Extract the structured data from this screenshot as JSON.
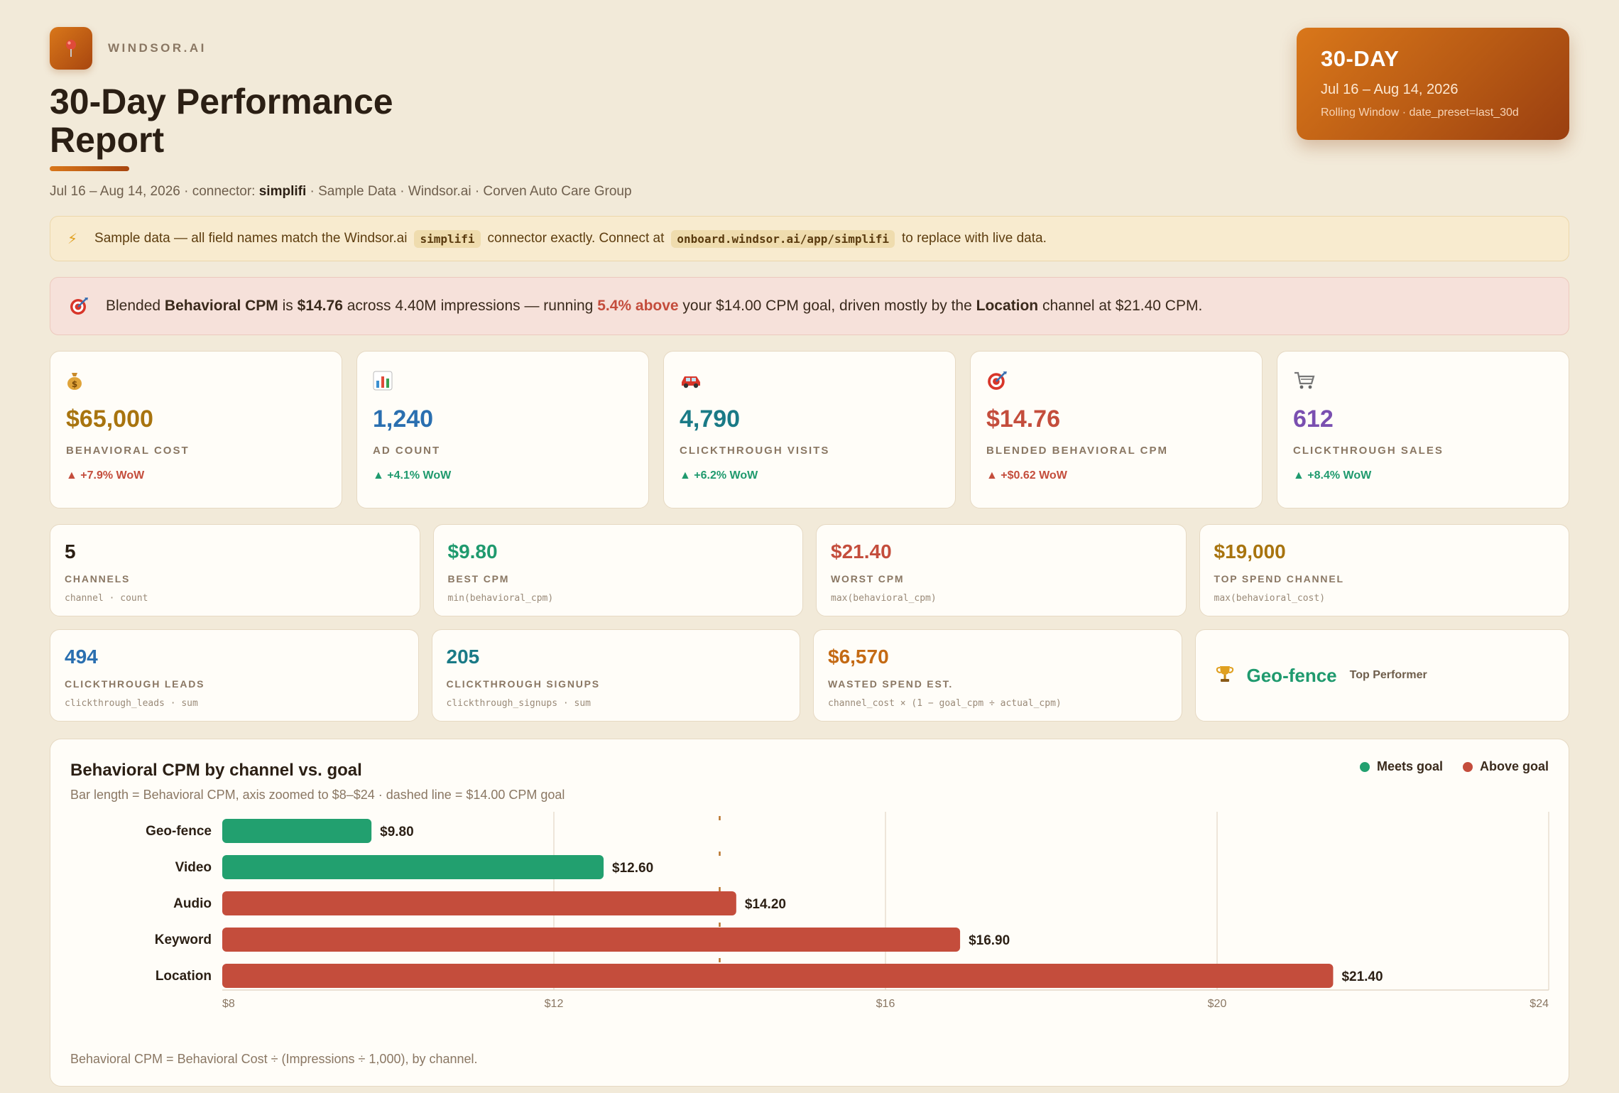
{
  "brand": {
    "name": "WINDSOR.AI"
  },
  "title": "30-Day Performance Report",
  "subline": {
    "prefix": "Jul 16 – Aug 14, 2026 · connector: ",
    "connector": "simplifi",
    "suffix": " · Sample Data · Windsor.ai · Corven Auto Care Group"
  },
  "period": {
    "label": "30-DAY",
    "dates": "Jul 16 – Aug 14, 2026",
    "meta": "Rolling Window · date_preset=last_30d"
  },
  "sample_banner": {
    "icon": "lightning-icon",
    "part1": "Sample data — all field names match the Windsor.ai",
    "code1": "simplifi",
    "part2": "connector exactly. Connect at",
    "code2": "onboard.windsor.ai/app/simplifi",
    "part3": "to replace with live data."
  },
  "insight": {
    "icon": "target-icon",
    "t1": "Blended ",
    "b1": "Behavioral CPM",
    "t2": " is ",
    "b2": "$14.76",
    "t3": " across 4.40M impressions — running ",
    "r1": "5.4% above",
    "t4": " your $14.00 CPM goal, driven mostly by the ",
    "b3": "Location",
    "t5": " channel at $21.40 CPM."
  },
  "kpis": [
    {
      "icon": "money-bag-icon",
      "value": "$65,000",
      "label": "BEHAVIORAL COST",
      "delta": "▲ +7.9% WoW",
      "color": "#a8740f",
      "delta_color": "#c44d3c"
    },
    {
      "icon": "bar-chart-icon",
      "value": "1,240",
      "label": "AD COUNT",
      "delta": "▲ +4.1% WoW",
      "color": "#2a6fb0",
      "delta_color": "#1f9a6e"
    },
    {
      "icon": "car-icon",
      "value": "4,790",
      "label": "CLICKTHROUGH VISITS",
      "delta": "▲ +6.2% WoW",
      "color": "#1a7a86",
      "delta_color": "#1f9a6e"
    },
    {
      "icon": "target-icon",
      "value": "$14.76",
      "label": "BLENDED BEHAVIORAL CPM",
      "delta": "▲ +$0.62 WoW",
      "color": "#c44d3c",
      "delta_color": "#c44d3c"
    },
    {
      "icon": "cart-icon",
      "value": "612",
      "label": "CLICKTHROUGH SALES",
      "delta": "▲ +8.4% WoW",
      "color": "#7a4fb0",
      "delta_color": "#1f9a6e"
    }
  ],
  "stats_row1": [
    {
      "value": "5",
      "label": "CHANNELS",
      "formula": "channel · count",
      "color": "#2b1f14"
    },
    {
      "value": "$9.80",
      "label": "BEST CPM",
      "formula": "min(behavioral_cpm)",
      "color": "#1f9a6e"
    },
    {
      "value": "$21.40",
      "label": "WORST CPM",
      "formula": "max(behavioral_cpm)",
      "color": "#c44d3c"
    },
    {
      "value": "$19,000",
      "label": "TOP SPEND CHANNEL",
      "formula": "max(behavioral_cost)",
      "color": "#a8740f"
    }
  ],
  "stats_row2": [
    {
      "value": "494",
      "label": "CLICKTHROUGH LEADS",
      "formula": "clickthrough_leads · sum",
      "color": "#2a6fb0"
    },
    {
      "value": "205",
      "label": "CLICKTHROUGH SIGNUPS",
      "formula": "clickthrough_signups · sum",
      "color": "#1a7a86"
    },
    {
      "value": "$6,570",
      "label": "WASTED SPEND EST.",
      "formula": "channel_cost × (1 − goal_cpm ÷ actual_cpm)",
      "color": "#c46a14"
    }
  ],
  "top_performer": {
    "icon": "trophy-icon",
    "name": "Geo-fence",
    "tag": "Top Performer"
  },
  "chart": {
    "title": "Behavioral CPM by channel vs. goal",
    "subtitle": "Bar length = Behavioral CPM, axis zoomed to $8–$24 · dashed line = $14.00 CPM goal",
    "legend": [
      {
        "label": "Meets goal",
        "color": "#22a06f"
      },
      {
        "label": "Above goal",
        "color": "#c44d3c"
      }
    ],
    "footnote": "Behavioral CPM = Behavioral Cost ÷ (Impressions ÷ 1,000), by channel."
  },
  "chart_data": {
    "type": "bar",
    "orientation": "horizontal",
    "categories": [
      "Geo-fence",
      "Video",
      "Audio",
      "Keyword",
      "Location"
    ],
    "values": [
      9.8,
      12.6,
      14.2,
      16.9,
      21.4
    ],
    "value_labels": [
      "$9.80",
      "$12.60",
      "$14.20",
      "$16.90",
      "$21.40"
    ],
    "status": [
      "meets",
      "meets",
      "above",
      "above",
      "above"
    ],
    "goal": 14.0,
    "xlim": [
      8,
      24
    ],
    "xticks": [
      8,
      12,
      16,
      20,
      24
    ],
    "xtick_labels": [
      "$8",
      "$12",
      "$16",
      "$20",
      "$24"
    ],
    "colors": {
      "meets": "#22a06f",
      "above": "#c44d3c",
      "goal_line": "#b8732a"
    }
  }
}
